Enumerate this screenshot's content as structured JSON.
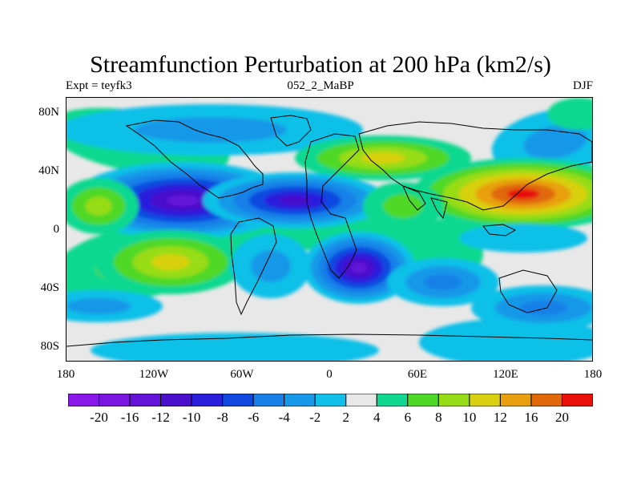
{
  "title": "Streamfunction Perturbation at 200 hPa (km2/s)",
  "left_string": "Expt = teyfk3",
  "center_string": "052_2_MaBP",
  "right_string": "DJF",
  "y_axis_labels": [
    "80N",
    "40N",
    "0",
    "40S",
    "80S"
  ],
  "x_axis_labels": [
    "180",
    "120W",
    "60W",
    "0",
    "60E",
    "120E",
    "180"
  ],
  "colorbar": {
    "labels": [
      "-20",
      "-16",
      "-12",
      "-10",
      "-8",
      "-6",
      "-4",
      "-2",
      "2",
      "4",
      "6",
      "8",
      "10",
      "12",
      "16",
      "20"
    ],
    "colors": [
      "#7a16e0",
      "#6414d8",
      "#4a10cc",
      "#2b1fdc",
      "#1048e0",
      "#1880e8",
      "#1898e8",
      "#10c0e8",
      "#e8e8e8",
      "#10d890",
      "#50d828",
      "#98dc18",
      "#d8d010",
      "#e8a010",
      "#e06808",
      "#e81008"
    ]
  },
  "map_colors": {
    "background": "#e8e8e8",
    "coastline": "#000000"
  }
}
